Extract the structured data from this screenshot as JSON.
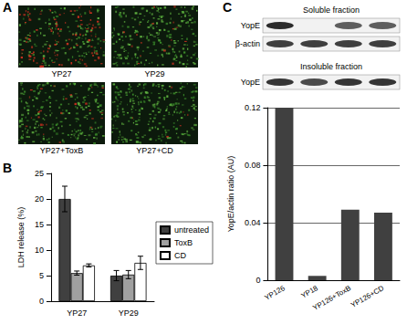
{
  "panel_labels": [
    "A",
    "B",
    "C"
  ],
  "panel_a": {
    "images": [
      "YP27",
      "YP29",
      "YP27+ToxB",
      "YP27+CD"
    ]
  },
  "panel_c_blot": {
    "soluble": {
      "title": "Soluble fraction",
      "rows": [
        "YopE",
        "β-actin"
      ]
    },
    "insoluble": {
      "title": "Insoluble fraction",
      "rows": [
        "YopE"
      ]
    }
  },
  "chart_data": [
    {
      "type": "bar",
      "categories": [
        "YP27",
        "YP29"
      ],
      "series": [
        {
          "name": "untreated",
          "color": "#404040",
          "values": [
            20,
            5
          ],
          "errors": [
            2.5,
            1
          ]
        },
        {
          "name": "ToxB",
          "color": "#a0a0a0",
          "values": [
            5.5,
            5.2
          ],
          "errors": [
            0.4,
            0.8
          ]
        },
        {
          "name": "CD",
          "color": "#ffffff",
          "values": [
            7,
            7.5
          ],
          "errors": [
            0.3,
            1.3
          ]
        }
      ],
      "y_label": "LDH release (%)",
      "ylim": [
        0,
        25
      ],
      "yticks": [
        0,
        5,
        10,
        15,
        20,
        25
      ],
      "grid": false,
      "legend": "right"
    },
    {
      "type": "bar",
      "categories": [
        "YP126",
        "YP18",
        "YP126+ToxB",
        "YP126+CD"
      ],
      "values": [
        0.12,
        0.003,
        0.049,
        0.047
      ],
      "color": "#404040",
      "y_label": "YopE/actin ratio (AU)",
      "ylim": [
        0,
        0.12
      ],
      "yticks": [
        0,
        0.04,
        0.08,
        0.12
      ],
      "grid": true
    }
  ]
}
